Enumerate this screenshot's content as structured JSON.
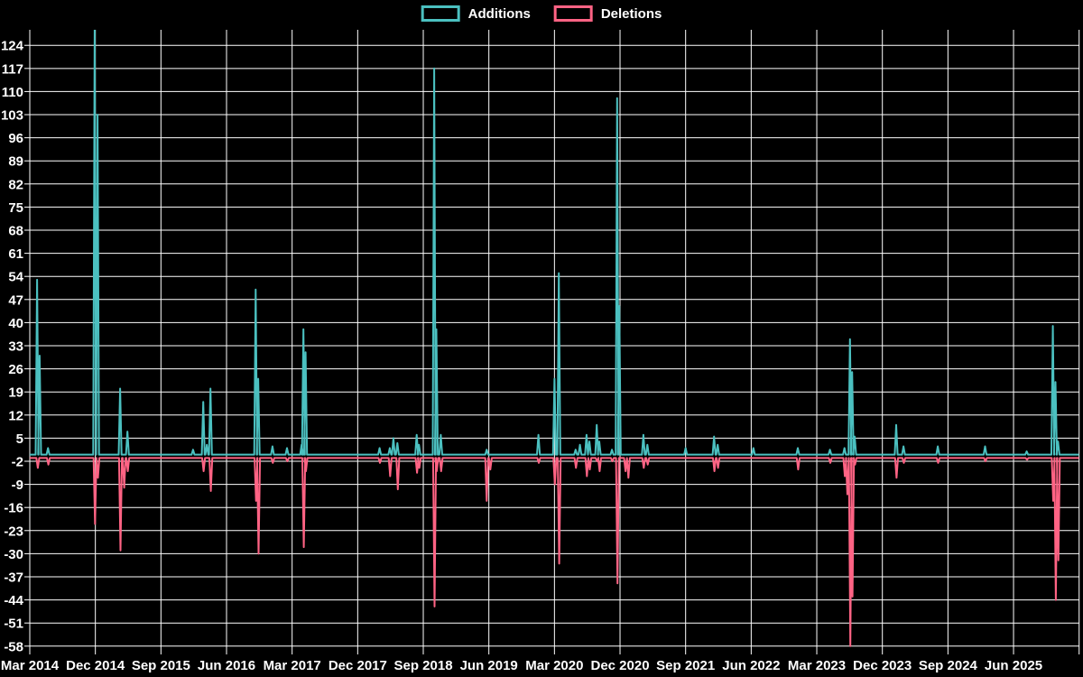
{
  "colors": {
    "background": "#000000",
    "grid": "#ffffff",
    "text": "#ffffff",
    "additions": "#4bc0c0",
    "deletions": "#ff6384"
  },
  "legend": {
    "items": [
      {
        "label": "Additions",
        "color": "#4bc0c0"
      },
      {
        "label": "Deletions",
        "color": "#ff6384"
      }
    ]
  },
  "chart_data": {
    "type": "line",
    "title": "",
    "xlabel": "",
    "ylabel": "",
    "grid": true,
    "legend_position": "top-center",
    "x_axis": {
      "tick_labels": [
        "Mar 2014",
        "Dec 2014",
        "Sep 2015",
        "Jun 2016",
        "Mar 2017",
        "Dec 2017",
        "Sep 2018",
        "Jun 2019",
        "Mar 2020",
        "Dec 2020",
        "Sep 2021",
        "Jun 2022",
        "Mar 2023",
        "Dec 2023",
        "Sep 2024",
        "Jun 2025"
      ],
      "months_between_ticks": 9,
      "x_unit": "months_since_first_tick",
      "total_month_span": 144
    },
    "y_axis": {
      "tick_labels": [
        124,
        117,
        110,
        103,
        96,
        89,
        82,
        75,
        68,
        61,
        54,
        47,
        40,
        33,
        26,
        19,
        12,
        5,
        -2,
        -9,
        -16,
        -23,
        -30,
        -37,
        -44,
        -51,
        -58
      ],
      "tick_step": 7,
      "ylim": [
        -61,
        129
      ]
    },
    "series": [
      {
        "name": "Additions",
        "color": "#4bc0c0",
        "baseline": 0,
        "points": [
          [
            1.0,
            53
          ],
          [
            1.35,
            30
          ],
          [
            2.5,
            2
          ],
          [
            8.9,
            129
          ],
          [
            9.3,
            103
          ],
          [
            12.4,
            20
          ],
          [
            13.4,
            7
          ],
          [
            22.4,
            1.5
          ],
          [
            23.8,
            16
          ],
          [
            24.3,
            3
          ],
          [
            24.8,
            20
          ],
          [
            31.0,
            50
          ],
          [
            31.35,
            23
          ],
          [
            33.3,
            2.5
          ],
          [
            35.3,
            2
          ],
          [
            37.3,
            3
          ],
          [
            37.55,
            38
          ],
          [
            37.85,
            31
          ],
          [
            48.0,
            2
          ],
          [
            49.4,
            2
          ],
          [
            49.9,
            5
          ],
          [
            50.45,
            3.5
          ],
          [
            53.1,
            6
          ],
          [
            53.4,
            3
          ],
          [
            55.5,
            117
          ],
          [
            55.8,
            38
          ],
          [
            56.4,
            6
          ],
          [
            62.7,
            1.5
          ],
          [
            69.8,
            6
          ],
          [
            72.0,
            23
          ],
          [
            72.6,
            55
          ],
          [
            74.9,
            1.5
          ],
          [
            75.5,
            3
          ],
          [
            76.4,
            6
          ],
          [
            76.8,
            4
          ],
          [
            77.8,
            9
          ],
          [
            78.15,
            4
          ],
          [
            79.9,
            1.5
          ],
          [
            80.6,
            108
          ],
          [
            80.9,
            45
          ],
          [
            84.2,
            6
          ],
          [
            84.75,
            3
          ],
          [
            90.0,
            2
          ],
          [
            93.9,
            5.5
          ],
          [
            94.4,
            3
          ],
          [
            99.3,
            2
          ],
          [
            105.4,
            2
          ],
          [
            109.8,
            1.5
          ],
          [
            111.8,
            2
          ],
          [
            112.55,
            35
          ],
          [
            112.85,
            25
          ],
          [
            113.2,
            5.5
          ],
          [
            118.9,
            9
          ],
          [
            119.9,
            2.5
          ],
          [
            124.6,
            2.5
          ],
          [
            131.1,
            2.5
          ],
          [
            136.8,
            1
          ],
          [
            140.4,
            39
          ],
          [
            140.75,
            22
          ],
          [
            141.1,
            4
          ]
        ]
      },
      {
        "name": "Deletions",
        "color": "#ff6384",
        "baseline": -1,
        "points": [
          [
            1.1,
            -4
          ],
          [
            2.55,
            -3
          ],
          [
            8.95,
            -21
          ],
          [
            9.35,
            -7
          ],
          [
            12.45,
            -29
          ],
          [
            12.95,
            -10
          ],
          [
            13.45,
            -5
          ],
          [
            23.85,
            -5
          ],
          [
            24.85,
            -11
          ],
          [
            31.05,
            -14
          ],
          [
            31.4,
            -30
          ],
          [
            33.35,
            -2.5
          ],
          [
            35.35,
            -2
          ],
          [
            37.6,
            -28
          ],
          [
            37.9,
            -5
          ],
          [
            48.05,
            -2.5
          ],
          [
            49.45,
            -6.5
          ],
          [
            50.5,
            -10.5
          ],
          [
            53.15,
            -5.5
          ],
          [
            53.45,
            -4
          ],
          [
            55.55,
            -46
          ],
          [
            55.85,
            -5
          ],
          [
            56.45,
            -5
          ],
          [
            62.7,
            -14
          ],
          [
            63.2,
            -4.5
          ],
          [
            69.85,
            -2.5
          ],
          [
            72.05,
            -9
          ],
          [
            72.65,
            -33
          ],
          [
            74.95,
            -4
          ],
          [
            76.45,
            -6.5
          ],
          [
            76.85,
            -4.5
          ],
          [
            77.85,
            -2
          ],
          [
            78.2,
            -5
          ],
          [
            79.95,
            -2
          ],
          [
            80.65,
            -39
          ],
          [
            81.75,
            -5
          ],
          [
            82.15,
            -7
          ],
          [
            84.25,
            -4
          ],
          [
            84.8,
            -3
          ],
          [
            93.95,
            -5
          ],
          [
            94.45,
            -4
          ],
          [
            105.45,
            -4.5
          ],
          [
            109.85,
            -2.5
          ],
          [
            111.85,
            -6.5
          ],
          [
            112.2,
            -12
          ],
          [
            112.6,
            -58
          ],
          [
            112.9,
            -43
          ],
          [
            113.25,
            -3
          ],
          [
            118.95,
            -7
          ],
          [
            119.95,
            -2.5
          ],
          [
            124.65,
            -2.5
          ],
          [
            131.15,
            -2
          ],
          [
            136.85,
            -1.5
          ],
          [
            140.45,
            -14
          ],
          [
            140.8,
            -44
          ],
          [
            141.15,
            -32
          ]
        ]
      }
    ]
  }
}
